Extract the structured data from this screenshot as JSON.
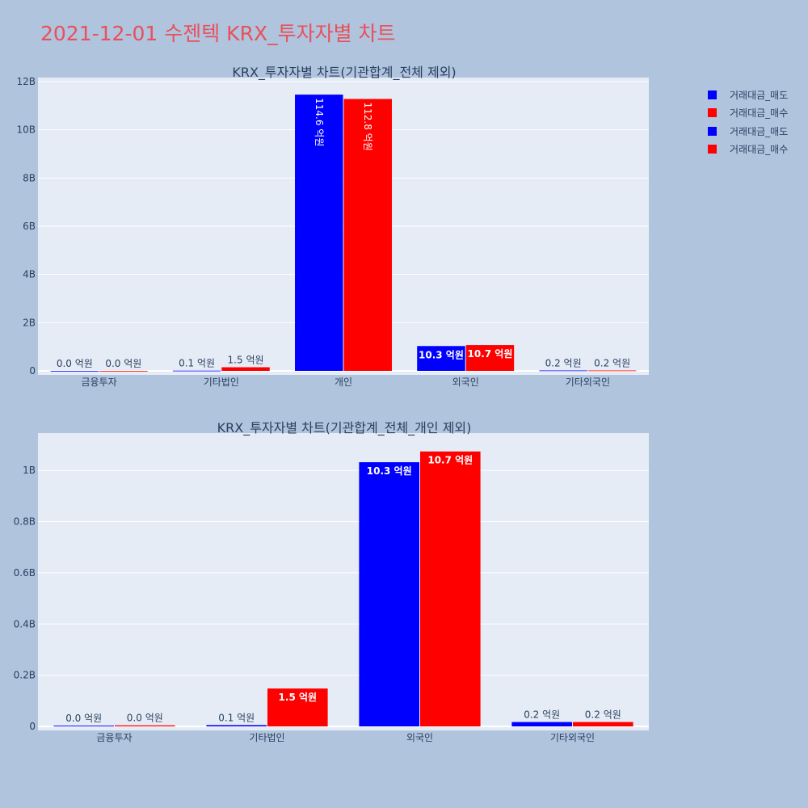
{
  "page_title": "2021-12-01 수젠텍 KRX_투자자별 차트",
  "colors": {
    "sell": "#0000ff",
    "buy": "#ff0000",
    "plot_bg": "#e5ecf6",
    "page_bg": "#b0c4de",
    "title": "#e8505b"
  },
  "legend": [
    {
      "label": "거래대금_매도",
      "color": "#0000ff"
    },
    {
      "label": "거래대금_매수",
      "color": "#ff0000"
    },
    {
      "label": "거래대금_매도",
      "color": "#0000ff"
    },
    {
      "label": "거래대금_매수",
      "color": "#ff0000"
    }
  ],
  "chart_data": [
    {
      "type": "bar",
      "title": "KRX_투자자별 차트(기관합계_전체 제외)",
      "categories": [
        "금융투자",
        "기타법인",
        "개인",
        "외국인",
        "기타외국인"
      ],
      "ylim": [
        0,
        12000000000
      ],
      "yticks": [
        0,
        2000000000,
        4000000000,
        6000000000,
        8000000000,
        10000000000,
        12000000000
      ],
      "ytick_labels": [
        "0",
        "2B",
        "4B",
        "6B",
        "8B",
        "10B",
        "12B"
      ],
      "series": [
        {
          "name": "거래대금_매도",
          "color": "#0000ff",
          "values": [
            1000000,
            10000000,
            11460000000,
            1030000000,
            17000000
          ],
          "labels": [
            "0.0 억원",
            "0.1 억원",
            "114.6 억원",
            "10.3 억원",
            "0.2 억원"
          ]
        },
        {
          "name": "거래대금_매수",
          "color": "#ff0000",
          "values": [
            1000000,
            150000000,
            11280000000,
            1070000000,
            17000000
          ],
          "labels": [
            "0.0 억원",
            "1.5 억원",
            "112.8 억원",
            "10.7 억원",
            "0.2 억원"
          ]
        }
      ]
    },
    {
      "type": "bar",
      "title": "KRX_투자자별 차트(기관합계_전체_개인 제외)",
      "categories": [
        "금융투자",
        "기타법인",
        "외국인",
        "기타외국인"
      ],
      "ylim": [
        0,
        1130000000
      ],
      "yticks": [
        0,
        200000000,
        400000000,
        600000000,
        800000000,
        1000000000
      ],
      "ytick_labels": [
        "0",
        "0.2B",
        "0.4B",
        "0.6B",
        "0.8B",
        "1B"
      ],
      "series": [
        {
          "name": "거래대금_매도",
          "color": "#0000ff",
          "values": [
            3000000,
            5000000,
            1032000000,
            17000000
          ],
          "labels": [
            "0.0 억원",
            "0.1 억원",
            "10.3 억원",
            "0.2 억원"
          ]
        },
        {
          "name": "거래대금_매수",
          "color": "#ff0000",
          "values": [
            4000000,
            148000000,
            1074000000,
            17000000
          ],
          "labels": [
            "0.0 억원",
            "1.5 억원",
            "10.7 억원",
            "0.2 억원"
          ]
        }
      ]
    }
  ]
}
